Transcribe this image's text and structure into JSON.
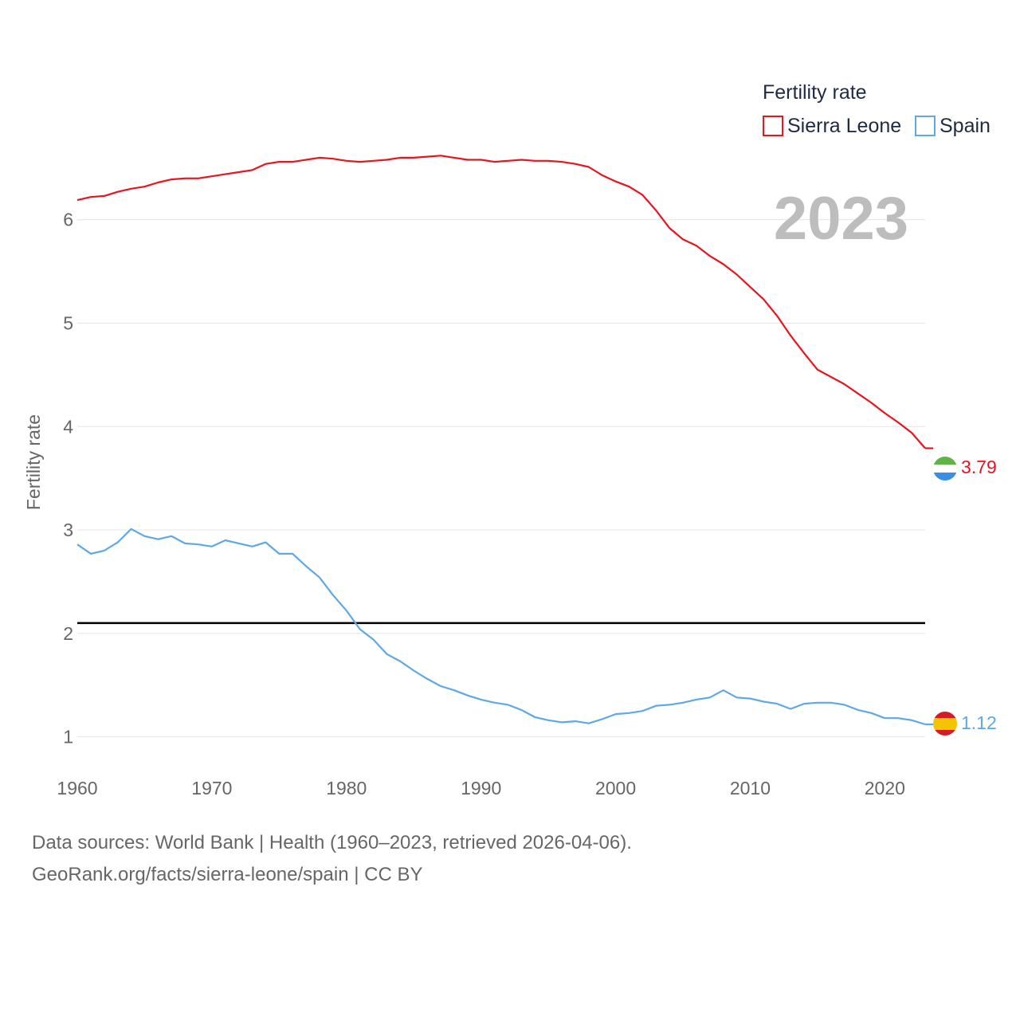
{
  "chart_data": {
    "type": "line",
    "title": "",
    "ylabel": "Fertility rate",
    "xlabel": "",
    "xlim": [
      1960,
      2023
    ],
    "ylim": [
      0.55,
      7.2
    ],
    "x_ticks": [
      1960,
      1970,
      1980,
      1990,
      2000,
      2010,
      2020
    ],
    "y_ticks": [
      1,
      2,
      3,
      4,
      5,
      6
    ],
    "grid": true,
    "legend": {
      "title": "Fertility rate",
      "position": "top-right",
      "entries": [
        {
          "name": "Sierra Leone",
          "color": "#e8141e"
        },
        {
          "name": "Spain",
          "color": "#5ea8e6"
        }
      ]
    },
    "year_label": "2023",
    "reference_line": {
      "y": 2.1,
      "color": "#000000"
    },
    "x": [
      1960,
      1961,
      1962,
      1963,
      1964,
      1965,
      1966,
      1967,
      1968,
      1969,
      1970,
      1971,
      1972,
      1973,
      1974,
      1975,
      1976,
      1977,
      1978,
      1979,
      1980,
      1981,
      1982,
      1983,
      1984,
      1985,
      1986,
      1987,
      1988,
      1989,
      1990,
      1991,
      1992,
      1993,
      1994,
      1995,
      1996,
      1997,
      1998,
      1999,
      2000,
      2001,
      2002,
      2003,
      2004,
      2005,
      2006,
      2007,
      2008,
      2009,
      2010,
      2011,
      2012,
      2013,
      2014,
      2015,
      2016,
      2017,
      2018,
      2019,
      2020,
      2021,
      2022,
      2023
    ],
    "series": [
      {
        "name": "Sierra Leone",
        "color": "#e8141e",
        "end_label": "3.79",
        "values": [
          6.19,
          6.22,
          6.23,
          6.27,
          6.3,
          6.32,
          6.36,
          6.39,
          6.4,
          6.4,
          6.42,
          6.44,
          6.46,
          6.48,
          6.54,
          6.56,
          6.56,
          6.58,
          6.6,
          6.59,
          6.57,
          6.56,
          6.57,
          6.58,
          6.6,
          6.6,
          6.61,
          6.62,
          6.6,
          6.58,
          6.58,
          6.56,
          6.57,
          6.58,
          6.57,
          6.57,
          6.56,
          6.54,
          6.51,
          6.43,
          6.37,
          6.32,
          6.24,
          6.09,
          5.92,
          5.81,
          5.75,
          5.65,
          5.57,
          5.47,
          5.35,
          5.23,
          5.07,
          4.88,
          4.71,
          4.55,
          4.48,
          4.41,
          4.32,
          4.23,
          4.13,
          4.04,
          3.94,
          3.79
        ]
      },
      {
        "name": "Spain",
        "color": "#5ea8e6",
        "end_label": "1.12",
        "values": [
          2.86,
          2.77,
          2.8,
          2.88,
          3.01,
          2.94,
          2.91,
          2.94,
          2.87,
          2.86,
          2.84,
          2.9,
          2.87,
          2.84,
          2.88,
          2.77,
          2.77,
          2.65,
          2.54,
          2.37,
          2.22,
          2.04,
          1.94,
          1.8,
          1.73,
          1.64,
          1.56,
          1.49,
          1.45,
          1.4,
          1.36,
          1.33,
          1.31,
          1.26,
          1.19,
          1.16,
          1.14,
          1.15,
          1.13,
          1.17,
          1.22,
          1.23,
          1.25,
          1.3,
          1.31,
          1.33,
          1.36,
          1.38,
          1.45,
          1.38,
          1.37,
          1.34,
          1.32,
          1.27,
          1.32,
          1.33,
          1.33,
          1.31,
          1.26,
          1.23,
          1.18,
          1.18,
          1.16,
          1.12
        ]
      }
    ],
    "sources": [
      "Data sources: World Bank | Health (1960–2023, retrieved 2026-04-06).",
      "GeoRank.org/facts/sierra-leone/spain | CC BY"
    ]
  }
}
